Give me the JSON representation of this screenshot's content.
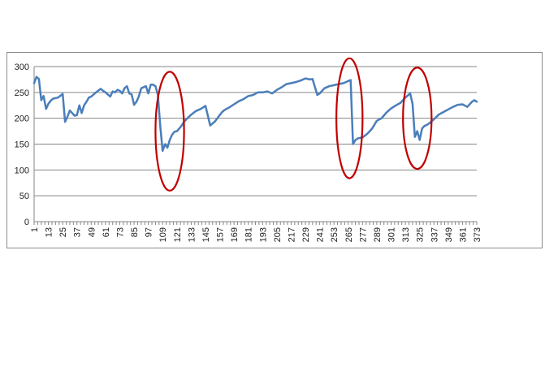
{
  "chart_data": {
    "type": "line",
    "title": "",
    "xlabel": "",
    "ylabel": "",
    "ylim": [
      0,
      300
    ],
    "yticks": [
      0,
      50,
      100,
      150,
      200,
      250,
      300
    ],
    "x_tick_labels": [
      "1",
      "13",
      "25",
      "37",
      "49",
      "61",
      "73",
      "85",
      "97",
      "109",
      "121",
      "133",
      "145",
      "157",
      "169",
      "181",
      "193",
      "205",
      "217",
      "229",
      "241",
      "253",
      "265",
      "277",
      "289",
      "301",
      "313",
      "325",
      "337",
      "349",
      "361",
      "373"
    ],
    "x_range": [
      1,
      373
    ],
    "grid": "horizontal",
    "legend": "none",
    "line_color": "#4a7ebb",
    "highlight_color": "#c00000",
    "series": [
      {
        "x": [
          1,
          3,
          5,
          7,
          9,
          11,
          13,
          15,
          17,
          21,
          25,
          27,
          29,
          31,
          33,
          35,
          37,
          39,
          41,
          43,
          45,
          47,
          49,
          53,
          57,
          59,
          61,
          63,
          65,
          67,
          69,
          71,
          73,
          75,
          77,
          79,
          81,
          83,
          85,
          87,
          89,
          91,
          95,
          97,
          99,
          101,
          103,
          105,
          107,
          109,
          111,
          113,
          115,
          117,
          119,
          121,
          123,
          125,
          127,
          129,
          133,
          137,
          141,
          145,
          149,
          153,
          155,
          157,
          159,
          161,
          165,
          169,
          173,
          177,
          181,
          185,
          189,
          193,
          197,
          201,
          205,
          209,
          213,
          217,
          221,
          225,
          229,
          233,
          235,
          237,
          239,
          241,
          245,
          249,
          253,
          257,
          261,
          263,
          265,
          267,
          269,
          271,
          273,
          277,
          281,
          285,
          289,
          293,
          297,
          301,
          305,
          309,
          313,
          317,
          319,
          321,
          323,
          325,
          327,
          329,
          331,
          333,
          337,
          341,
          345,
          349,
          353,
          357,
          361,
          365,
          369,
          371,
          373
        ],
        "y": [
          268,
          280,
          276,
          235,
          243,
          218,
          228,
          234,
          238,
          240,
          247,
          193,
          203,
          215,
          210,
          205,
          206,
          225,
          210,
          225,
          232,
          240,
          242,
          250,
          257,
          253,
          250,
          246,
          242,
          252,
          250,
          255,
          253,
          248,
          258,
          262,
          248,
          246,
          226,
          232,
          242,
          258,
          262,
          248,
          265,
          265,
          262,
          245,
          185,
          137,
          150,
          143,
          158,
          168,
          174,
          175,
          180,
          186,
          193,
          198,
          207,
          214,
          218,
          224,
          186,
          194,
          200,
          206,
          212,
          216,
          221,
          227,
          233,
          237,
          243,
          245,
          250,
          250,
          252,
          248,
          255,
          260,
          266,
          268,
          270,
          273,
          277,
          275,
          276,
          260,
          245,
          248,
          258,
          262,
          264,
          266,
          268,
          270,
          272,
          274,
          150,
          158,
          161,
          163,
          170,
          180,
          195,
          200,
          211,
          219,
          225,
          230,
          240,
          248,
          228,
          164,
          175,
          158,
          180,
          185,
          187,
          190,
          198,
          207,
          212,
          217,
          222,
          226,
          227,
          222,
          232,
          235,
          232
        ]
      }
    ],
    "annotations": [
      {
        "shape": "ellipse",
        "x_center": 115,
        "y_center": 175,
        "x_half_width": 12,
        "y_half_height": 115
      },
      {
        "shape": "ellipse",
        "x_center": 266,
        "y_center": 200,
        "x_half_width": 11,
        "y_half_height": 116
      },
      {
        "shape": "ellipse",
        "x_center": 323,
        "y_center": 200,
        "x_half_width": 12,
        "y_half_height": 98
      }
    ]
  }
}
